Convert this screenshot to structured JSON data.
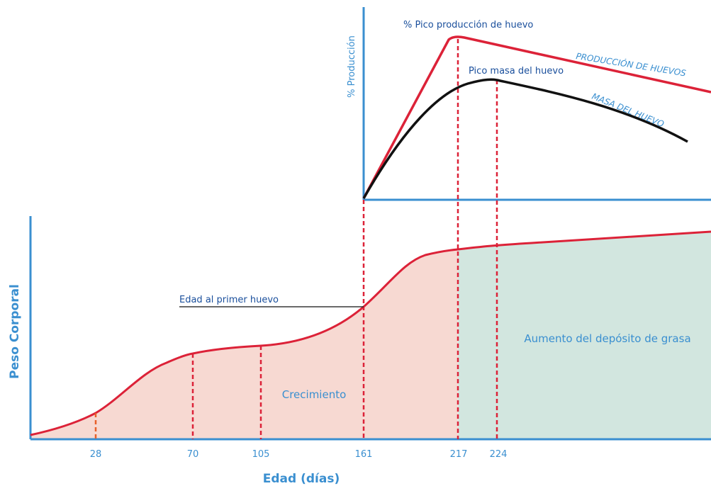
{
  "chart_data": [
    {
      "type": "area",
      "ylabel": "Peso Corporal",
      "xlabel": "Edad (días)",
      "x_ticks": [
        28,
        70,
        105,
        161,
        217,
        224
      ],
      "regions": [
        {
          "label": "Crecimiento",
          "from": 0,
          "to": 217,
          "color": "#f7d9d2"
        },
        {
          "label": "Aumento del depósito de grasa",
          "from": 217,
          "to": 365,
          "color": "#d2e6df"
        }
      ],
      "annotation": "Edad al primer huevo",
      "colors": {
        "curve": "#dc2238",
        "axis": "#3a8fd0",
        "guide": "#dc2238"
      }
    },
    {
      "type": "line",
      "ylabel": "% Producción",
      "series": [
        {
          "name": "PRODUCCIÓN DE HUEVOS",
          "color": "#dc2238"
        },
        {
          "name": "MASA DEL HUEVO",
          "color": "#111111"
        }
      ],
      "annotations": [
        "% Pico producción de huevo",
        "Pico masa del huevo"
      ]
    }
  ]
}
